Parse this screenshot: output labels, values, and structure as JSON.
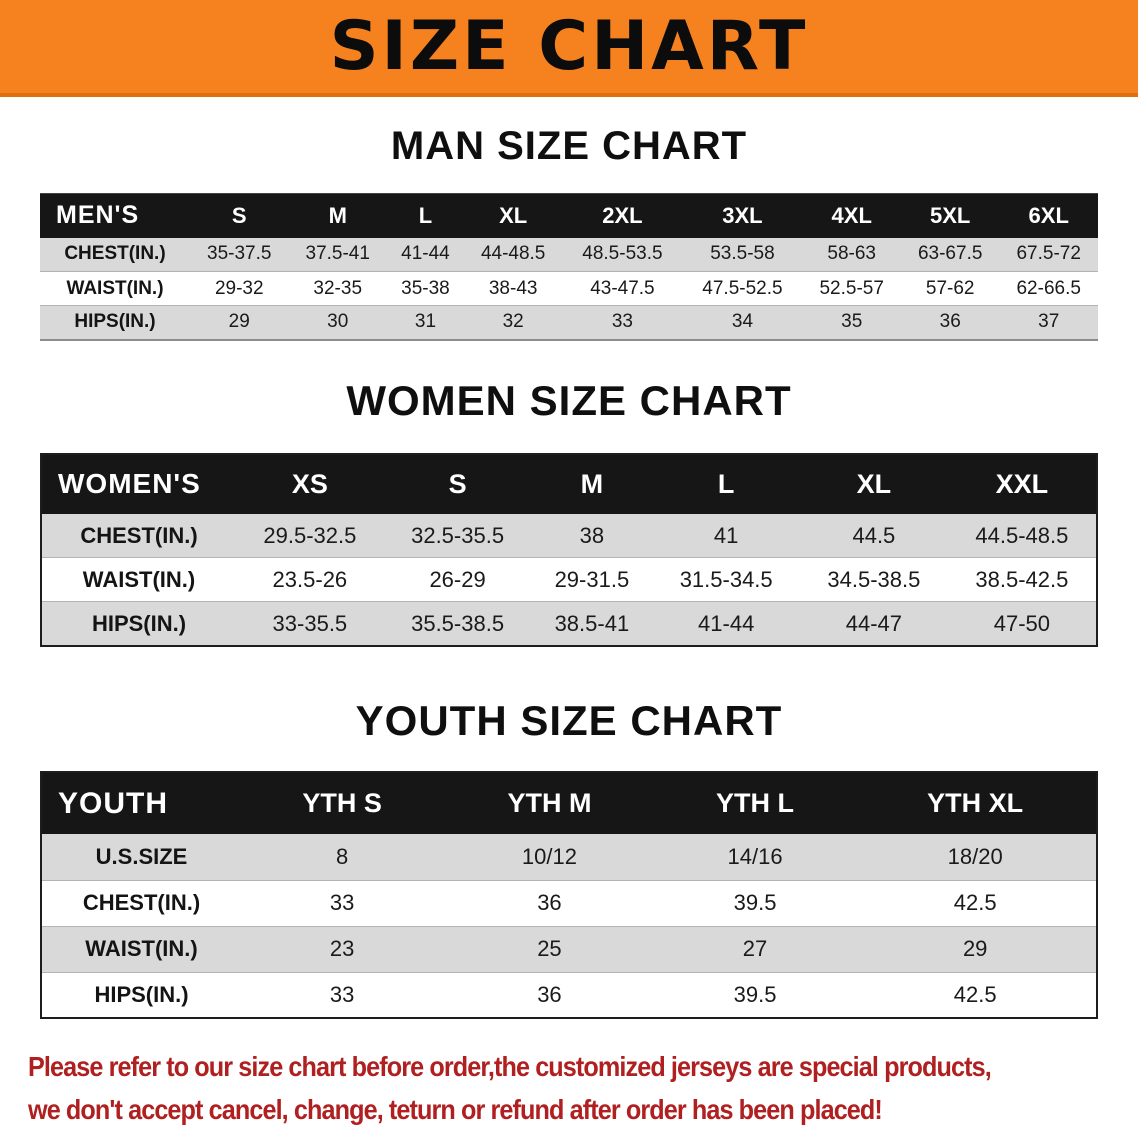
{
  "banner": {
    "title": "SIZE CHART"
  },
  "colors": {
    "banner_bg": "#f5821f",
    "table_header_bg": "#161616",
    "row_alt_bg": "#d9d9d9",
    "note_red": "#b02020"
  },
  "sections": {
    "men": {
      "heading": "MAN SIZE CHART",
      "table": {
        "header": [
          "MEN'S",
          "S",
          "M",
          "L",
          "XL",
          "2XL",
          "3XL",
          "4XL",
          "5XL",
          "6XL"
        ],
        "rows": [
          [
            "CHEST(IN.)",
            "35-37.5",
            "37.5-41",
            "41-44",
            "44-48.5",
            "48.5-53.5",
            "53.5-58",
            "58-63",
            "63-67.5",
            "67.5-72"
          ],
          [
            "WAIST(IN.)",
            "29-32",
            "32-35",
            "35-38",
            "38-43",
            "43-47.5",
            "47.5-52.5",
            "52.5-57",
            "57-62",
            "62-66.5"
          ],
          [
            "HIPS(IN.)",
            "29",
            "30",
            "31",
            "32",
            "33",
            "34",
            "35",
            "36",
            "37"
          ]
        ]
      }
    },
    "women": {
      "heading": "WOMEN SIZE CHART",
      "table": {
        "header": [
          "WOMEN'S",
          "XS",
          "S",
          "M",
          "L",
          "XL",
          "XXL"
        ],
        "rows": [
          [
            "CHEST(IN.)",
            "29.5-32.5",
            "32.5-35.5",
            "38",
            "41",
            "44.5",
            "44.5-48.5"
          ],
          [
            "WAIST(IN.)",
            "23.5-26",
            "26-29",
            "29-31.5",
            "31.5-34.5",
            "34.5-38.5",
            "38.5-42.5"
          ],
          [
            "HIPS(IN.)",
            "33-35.5",
            "35.5-38.5",
            "38.5-41",
            "41-44",
            "44-47",
            "47-50"
          ]
        ]
      }
    },
    "youth": {
      "heading": "YOUTH SIZE CHART",
      "table": {
        "header": [
          "YOUTH",
          "YTH S",
          "YTH M",
          "YTH L",
          "YTH XL"
        ],
        "rows": [
          [
            "U.S.SIZE",
            "8",
            "10/12",
            "14/16",
            "18/20"
          ],
          [
            "CHEST(IN.)",
            "33",
            "36",
            "39.5",
            "42.5"
          ],
          [
            "WAIST(IN.)",
            "23",
            "25",
            "27",
            "29"
          ],
          [
            "HIPS(IN.)",
            "33",
            "36",
            "39.5",
            "42.5"
          ]
        ]
      }
    }
  },
  "note": {
    "line1": "Please refer to our size chart before order,the customized jerseys are special products,",
    "line2": "we don't accept cancel, change, teturn or refund after order has been placed!"
  }
}
